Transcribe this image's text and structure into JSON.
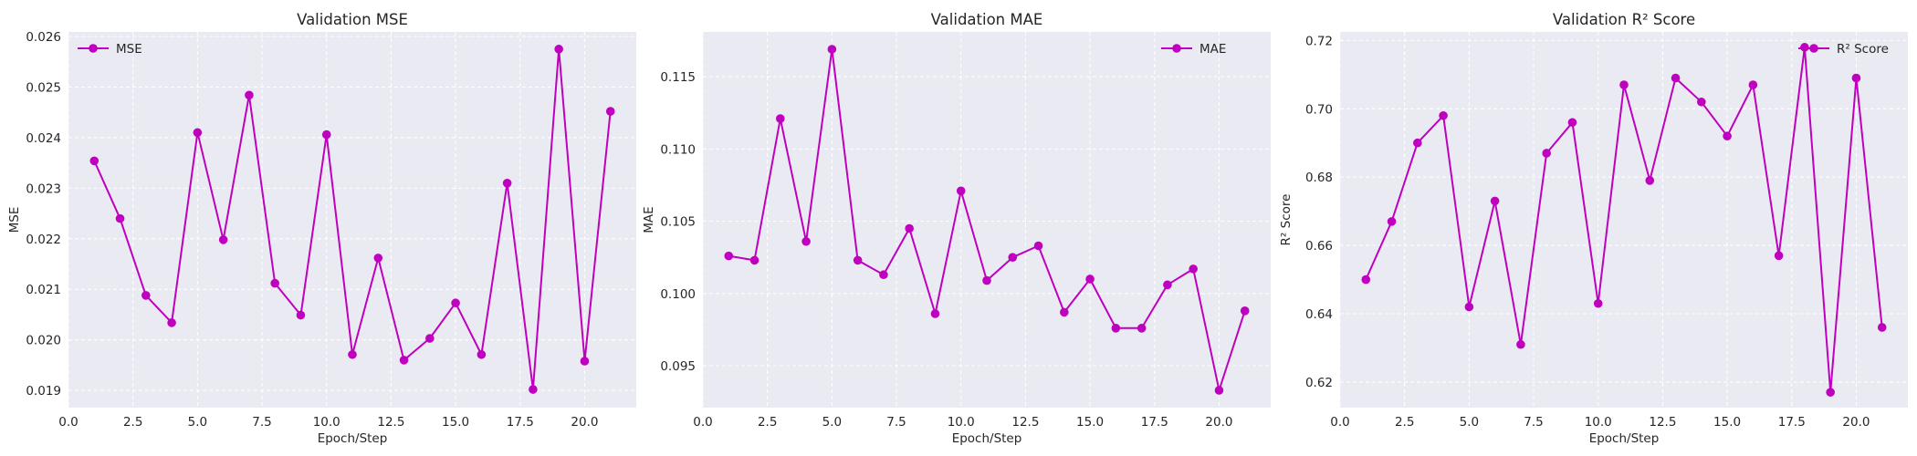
{
  "chart_data": [
    {
      "type": "line",
      "title": "Validation MSE",
      "xlabel": "Epoch/Step",
      "ylabel": "MSE",
      "xlim": [
        0,
        22
      ],
      "ylim": [
        0.01866,
        0.02609
      ],
      "xticks": [
        0.0,
        2.5,
        5.0,
        7.5,
        10.0,
        12.5,
        15.0,
        17.5,
        20.0
      ],
      "xtick_labels": [
        "0.0",
        "2.5",
        "5.0",
        "7.5",
        "10.0",
        "12.5",
        "15.0",
        "17.5",
        "20.0"
      ],
      "yticks": [
        0.019,
        0.02,
        0.021,
        0.022,
        0.023,
        0.024,
        0.025,
        0.026
      ],
      "ytick_labels": [
        "0.019",
        "0.020",
        "0.021",
        "0.022",
        "0.023",
        "0.024",
        "0.025",
        "0.026"
      ],
      "grid": true,
      "legend_position": "top-left",
      "color": "#bf00bf",
      "series": [
        {
          "name": "MSE",
          "x": [
            1,
            2,
            3,
            4,
            5,
            6,
            7,
            8,
            9,
            10,
            11,
            12,
            13,
            14,
            15,
            16,
            17,
            18,
            19,
            20,
            21
          ],
          "y": [
            0.02354,
            0.0224,
            0.02088,
            0.02034,
            0.0241,
            0.02198,
            0.02484,
            0.02112,
            0.02049,
            0.02406,
            0.01971,
            0.02162,
            0.0196,
            0.02003,
            0.02073,
            0.01971,
            0.0231,
            0.01902,
            0.02575,
            0.01958,
            0.02452
          ]
        }
      ]
    },
    {
      "type": "line",
      "title": "Validation MAE",
      "xlabel": "Epoch/Step",
      "ylabel": "MAE",
      "xlim": [
        0,
        22
      ],
      "ylim": [
        0.0921,
        0.1181
      ],
      "xticks": [
        0.0,
        2.5,
        5.0,
        7.5,
        10.0,
        12.5,
        15.0,
        17.5,
        20.0
      ],
      "xtick_labels": [
        "0.0",
        "2.5",
        "5.0",
        "7.5",
        "10.0",
        "12.5",
        "15.0",
        "17.5",
        "20.0"
      ],
      "yticks": [
        0.095,
        0.1,
        0.105,
        0.11,
        0.115
      ],
      "ytick_labels": [
        "0.095",
        "0.100",
        "0.105",
        "0.110",
        "0.115"
      ],
      "grid": true,
      "legend_position": "top-right",
      "color": "#bf00bf",
      "series": [
        {
          "name": "MAE",
          "x": [
            1,
            2,
            3,
            4,
            5,
            6,
            7,
            8,
            9,
            10,
            11,
            12,
            13,
            14,
            15,
            16,
            17,
            18,
            19,
            20,
            21
          ],
          "y": [
            0.1026,
            0.1023,
            0.1121,
            0.1036,
            0.1169,
            0.1023,
            0.1013,
            0.1045,
            0.0986,
            0.1071,
            0.1009,
            0.1025,
            0.1033,
            0.0987,
            0.101,
            0.0976,
            0.0976,
            0.1006,
            0.1017,
            0.0933,
            0.0988
          ]
        }
      ]
    },
    {
      "type": "line",
      "title": "Validation R² Score",
      "xlabel": "Epoch/Step",
      "ylabel": "R² Score",
      "xlim": [
        0,
        22
      ],
      "ylim": [
        0.6125,
        0.7225
      ],
      "xticks": [
        0.0,
        2.5,
        5.0,
        7.5,
        10.0,
        12.5,
        15.0,
        17.5,
        20.0
      ],
      "xtick_labels": [
        "0.0",
        "2.5",
        "5.0",
        "7.5",
        "10.0",
        "12.5",
        "15.0",
        "17.5",
        "20.0"
      ],
      "yticks": [
        0.62,
        0.64,
        0.66,
        0.68,
        0.7,
        0.72
      ],
      "ytick_labels": [
        "0.62",
        "0.64",
        "0.66",
        "0.68",
        "0.70",
        "0.72"
      ],
      "grid": true,
      "legend_position": "top-right",
      "color": "#bf00bf",
      "series": [
        {
          "name": "R² Score",
          "x": [
            1,
            2,
            3,
            4,
            5,
            6,
            7,
            8,
            9,
            10,
            11,
            12,
            13,
            14,
            15,
            16,
            17,
            18,
            19,
            20,
            21
          ],
          "y": [
            0.65,
            0.667,
            0.69,
            0.698,
            0.642,
            0.673,
            0.631,
            0.687,
            0.696,
            0.643,
            0.707,
            0.679,
            0.709,
            0.702,
            0.692,
            0.707,
            0.657,
            0.718,
            0.617,
            0.709,
            0.636
          ]
        }
      ]
    }
  ]
}
